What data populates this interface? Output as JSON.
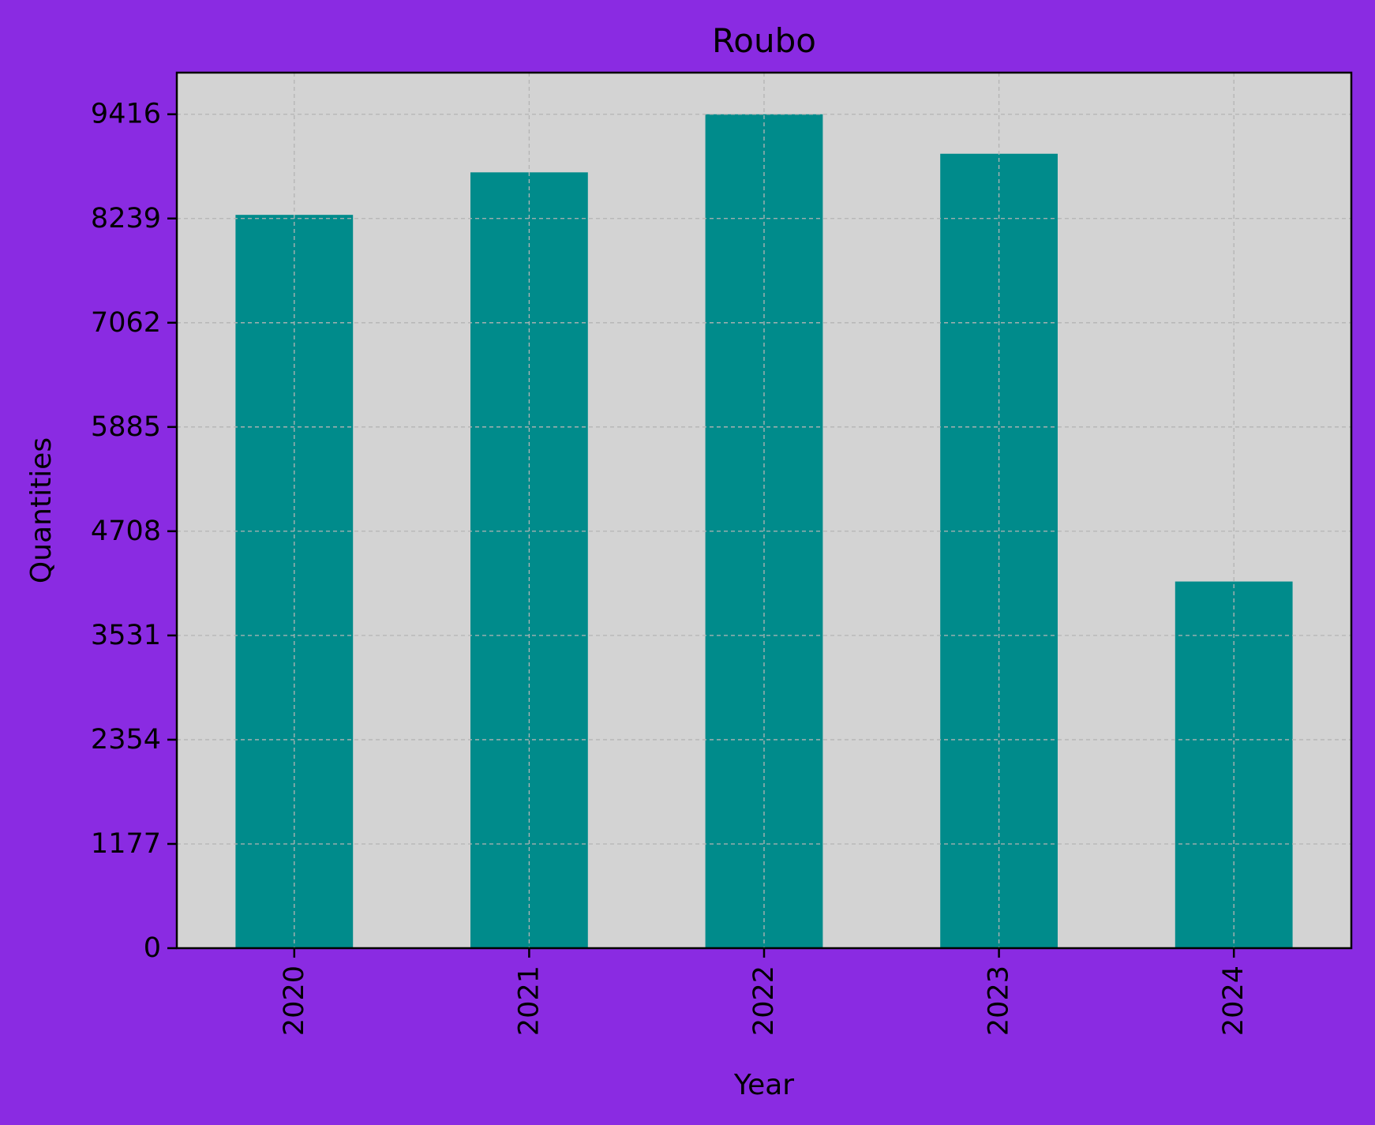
{
  "colors": {
    "background": "#8a2be2",
    "plot_background": "#d3d3d3",
    "bar": "#008b8b",
    "grid": "#b4b4b4",
    "axis": "#000000",
    "text": "#000000"
  },
  "chart_data": {
    "type": "bar",
    "title": "Roubo",
    "xlabel": "Year",
    "ylabel": "Quantities",
    "categories": [
      "2020",
      "2021",
      "2022",
      "2023",
      "2024"
    ],
    "values": [
      8280,
      8760,
      9416,
      8970,
      4140
    ],
    "ylim": [
      0,
      9886
    ],
    "yticks": [
      0,
      1177,
      2354,
      3531,
      4708,
      5885,
      7062,
      8239,
      9416
    ],
    "ytick_labels": [
      "0",
      "1177",
      "2354",
      "3531",
      "4708",
      "5885",
      "7062",
      "8239",
      "9416"
    ],
    "grid": true,
    "grid_style": "dashed",
    "legend": false,
    "xtick_rotation": "vertical"
  }
}
